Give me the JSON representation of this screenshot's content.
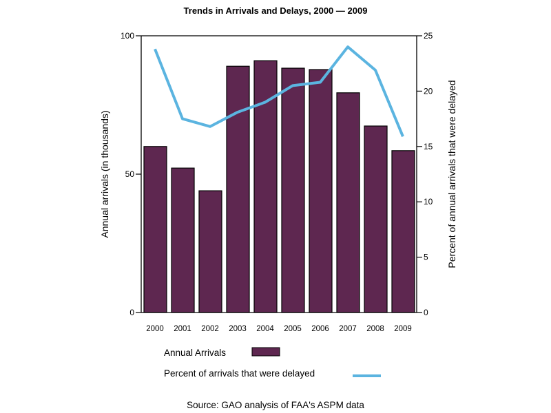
{
  "chart_data": {
    "type": "bar",
    "title": "Trends in Arrivals and Delays, 2000 — 2009",
    "categories": [
      "2000",
      "2001",
      "2002",
      "2003",
      "2004",
      "2005",
      "2006",
      "2007",
      "2008",
      "2009"
    ],
    "series": [
      {
        "name": "Annual Arrivals",
        "type": "bar",
        "axis": "left",
        "color": "#5E2750",
        "values": [
          60,
          52.2,
          44,
          89,
          91,
          88.3,
          87.8,
          79.4,
          67.4,
          58.5
        ]
      },
      {
        "name": "Percent of arrivals that were delayed",
        "type": "line",
        "axis": "right",
        "color": "#5BB4E0",
        "values": [
          23.8,
          17.5,
          16.8,
          18.1,
          19.0,
          20.5,
          20.8,
          24.0,
          21.9,
          15.9
        ]
      }
    ],
    "ylabel": "Annual arrivals (in thousands)",
    "ylim": [
      0,
      100
    ],
    "yticks": [
      0,
      50,
      100
    ],
    "y2label": "Percent of annual arrivals that were delayed",
    "y2lim": [
      0,
      25
    ],
    "y2ticks": [
      0,
      5,
      10,
      15,
      20,
      25
    ],
    "xlabel": "",
    "grid": false,
    "legend": {
      "position": "bottom",
      "entries": [
        "Annual Arrivals",
        "Percent of arrivals that were delayed"
      ]
    },
    "source": "Source: GAO analysis of FAA's ASPM data"
  }
}
